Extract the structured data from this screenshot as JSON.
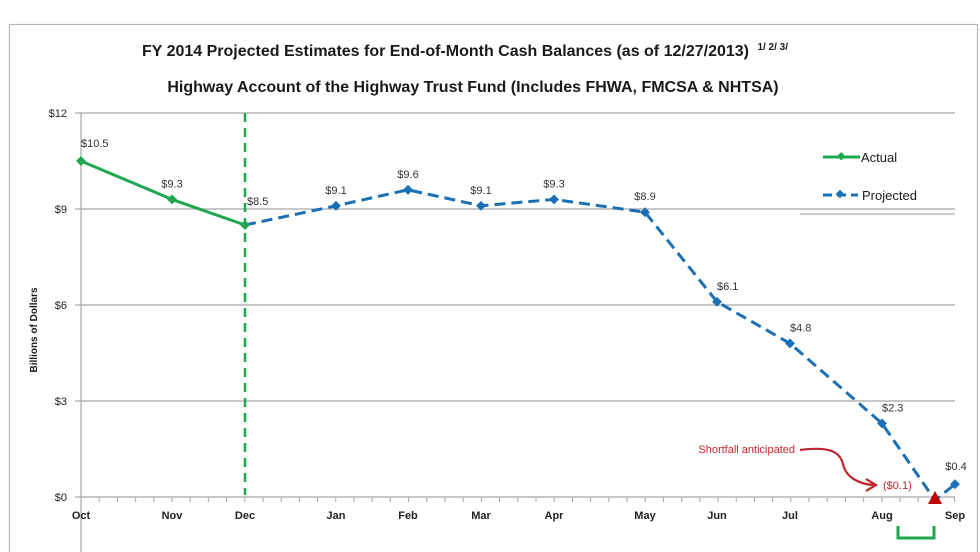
{
  "chart_data": {
    "type": "line",
    "title": "FY 2014 Projected Estimates for End-of-Month Cash Balances (as of 12/27/2013)",
    "title_superscript": "1/ 2/ 3/",
    "subtitle": "Highway Account of the Highway Trust Fund (Includes FHWA, FMCSA & NHTSA)",
    "xlabel": "",
    "ylabel": "Billions of Dollars",
    "ylim": [
      0,
      12
    ],
    "yticks": [
      0,
      3,
      6,
      9,
      12
    ],
    "ytick_labels": [
      "$0",
      "$3",
      "$6",
      "$9",
      "$12"
    ],
    "categories": [
      "Oct",
      "Nov",
      "Dec",
      "Jan",
      "Feb",
      "Mar",
      "Apr",
      "May",
      "Jun",
      "Jul",
      "Aug",
      "Sep"
    ],
    "grid": true,
    "legend_position": "top-right",
    "series": [
      {
        "name": "Actual",
        "color": "#1fa84f",
        "style": "solid",
        "points": [
          {
            "x": "Oct",
            "y": 10.5,
            "label": "$10.5"
          },
          {
            "x": "Nov",
            "y": 9.3,
            "label": "$9.3"
          },
          {
            "x": "Dec",
            "y": 8.5,
            "label": "$8.5"
          }
        ]
      },
      {
        "name": "Projected",
        "color": "#1a6fb5",
        "style": "dashed",
        "points": [
          {
            "x": "Dec",
            "y": 8.5,
            "label": ""
          },
          {
            "x": "Jan",
            "y": 9.1,
            "label": "$9.1"
          },
          {
            "x": "Feb",
            "y": 9.6,
            "label": "$9.6"
          },
          {
            "x": "Mar",
            "y": 9.1,
            "label": "$9.1"
          },
          {
            "x": "Apr",
            "y": 9.3,
            "label": "$9.3"
          },
          {
            "x": "May",
            "y": 8.9,
            "label": "$8.9"
          },
          {
            "x": "Jun",
            "y": 6.1,
            "label": "$6.1"
          },
          {
            "x": "Jul",
            "y": 4.8,
            "label": "$4.8"
          },
          {
            "x": "Aug",
            "y": 2.3,
            "label": "$2.3"
          },
          {
            "x": "late Aug",
            "y": -0.1,
            "label": "($0.1)",
            "marker": "none"
          },
          {
            "x": "Sep",
            "y": 0.4,
            "label": "$0.4"
          }
        ]
      }
    ],
    "annotations": {
      "shortfall_text": "Shortfall anticipated",
      "shortfall_value": "($0.1)",
      "shortfall_color": "#c0262d",
      "divider_at": "Dec",
      "divider_color": "#1fa84f",
      "bracket_color": "#1fa84f"
    }
  }
}
